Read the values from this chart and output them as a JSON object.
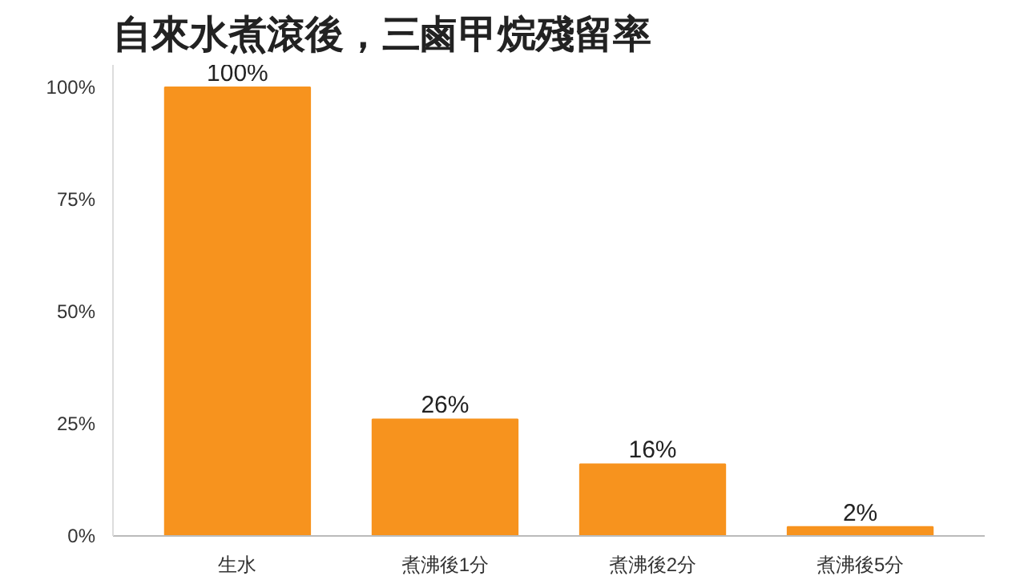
{
  "chart_data": {
    "type": "bar",
    "title": "自來水煮滾後，三鹵甲烷殘留率",
    "categories": [
      "生水",
      "煮沸後1分",
      "煮沸後2分",
      "煮沸後5分"
    ],
    "values": [
      100,
      26,
      16,
      2
    ],
    "value_labels": [
      "100%",
      "26%",
      "16%",
      "2%"
    ],
    "color": "#f7931e",
    "ylim": [
      0,
      105
    ],
    "yticks": [
      {
        "value": 0,
        "label": "0%"
      },
      {
        "value": 25,
        "label": "25%"
      },
      {
        "value": 50,
        "label": "50%"
      },
      {
        "value": 75,
        "label": "75%"
      },
      {
        "value": 100,
        "label": "100%"
      }
    ],
    "grid": false
  }
}
